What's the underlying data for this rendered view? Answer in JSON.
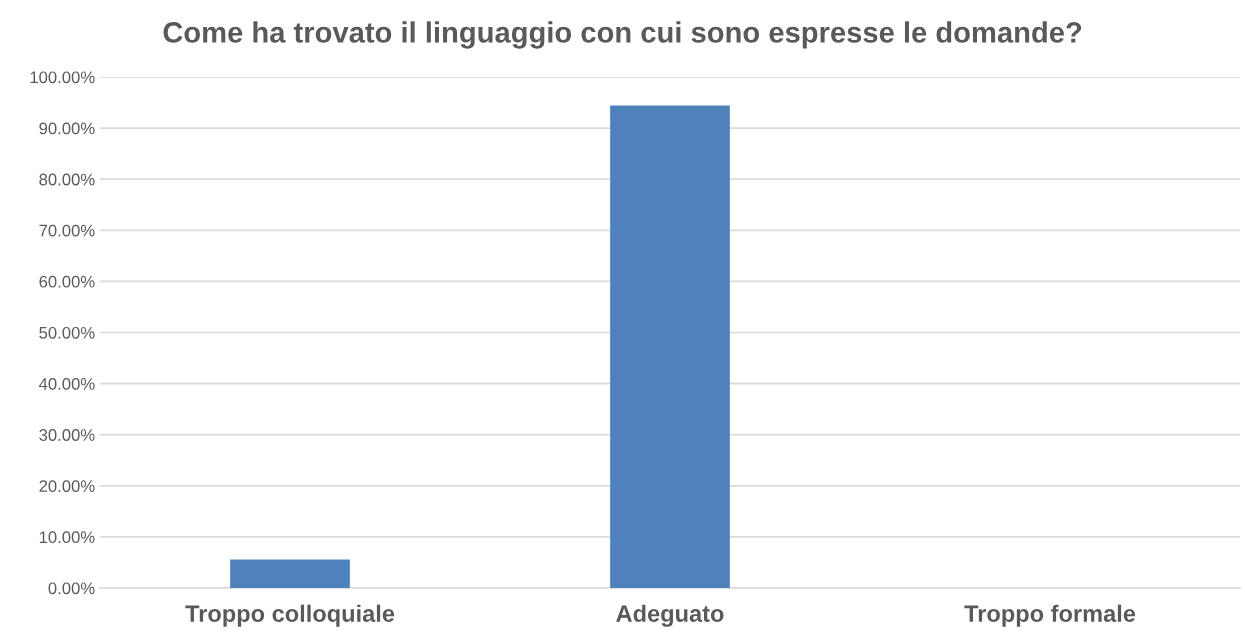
{
  "chart_data": {
    "type": "bar",
    "title": "Come ha trovato il linguaggio con cui sono espresse le domande?",
    "categories": [
      "Troppo colloquiale",
      "Adeguato",
      "Troppo formale"
    ],
    "values": [
      5.6,
      94.4,
      0
    ],
    "color": "#4f81bd",
    "ylim": [
      0,
      100
    ],
    "yticks": [
      {
        "value": 0,
        "label": "0.00%"
      },
      {
        "value": 10,
        "label": "10.00%"
      },
      {
        "value": 20,
        "label": "20.00%"
      },
      {
        "value": 30,
        "label": "30.00%"
      },
      {
        "value": 40,
        "label": "40.00%"
      },
      {
        "value": 50,
        "label": "50.00%"
      },
      {
        "value": 60,
        "label": "60.00%"
      },
      {
        "value": 70,
        "label": "70.00%"
      },
      {
        "value": 80,
        "label": "80.00%"
      },
      {
        "value": 90,
        "label": "90.00%"
      },
      {
        "value": 100,
        "label": "100.00%"
      }
    ],
    "grid": "y",
    "legend": false
  }
}
